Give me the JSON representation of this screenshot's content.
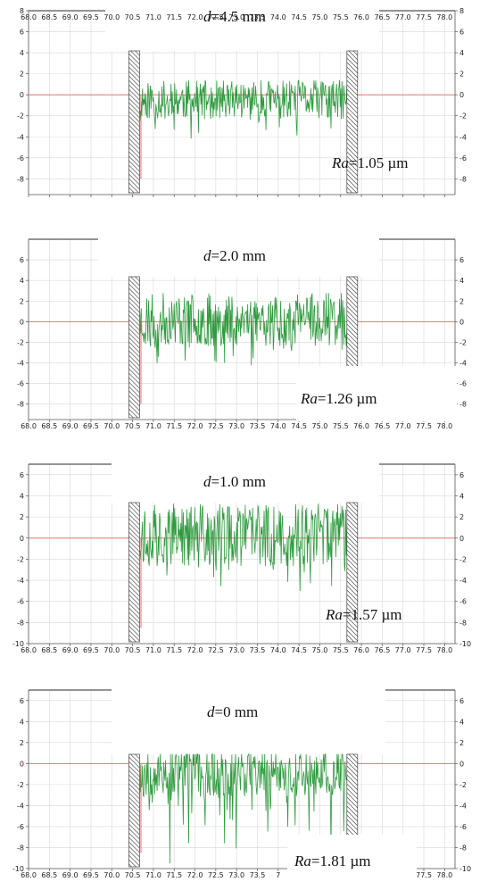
{
  "colors": {
    "profile": "#2e9b3e",
    "zero_line": "#e06060",
    "grid": "#d8d8d8",
    "axis": "#555555",
    "hatch": "#444444"
  },
  "chart_data": [
    {
      "type": "line",
      "title_italic": "d",
      "title_rest": "=4.5 mm",
      "ra_italic": "Ra",
      "ra_rest": "=1.05 µm",
      "xlim": [
        68.0,
        78.25
      ],
      "ylim": [
        -9.5,
        8
      ],
      "yticks": [
        8,
        6,
        4,
        2,
        0,
        -2,
        -4,
        -6,
        -8
      ],
      "xticks": [
        "68.0",
        "68.5",
        "69.0",
        "69.5",
        "70.0",
        "70.5",
        "71.0",
        "71.5",
        "72.0",
        "72.5",
        "73.0",
        "73.5",
        "74.0",
        "74.5",
        "75.0",
        "75.5",
        "76.0",
        "76.5",
        "77.0",
        "77.5",
        "78.0"
      ],
      "zero_line": 0,
      "profile": {
        "x_start": 70.68,
        "x_end": 75.65,
        "mean": -0.5,
        "amplitude": 1.9,
        "spikes": 0.8,
        "seed": 11
      },
      "edges": {
        "left": 70.62,
        "right": 75.7
      }
    },
    {
      "type": "line",
      "title_italic": "d",
      "title_rest": "=2.0 mm",
      "ra_italic": "Ra",
      "ra_rest": "=1.26 µm",
      "xlim": [
        68.0,
        78.25
      ],
      "ylim": [
        -9.5,
        8
      ],
      "yticks": [
        6,
        4,
        2,
        0,
        -2,
        -4,
        -6,
        -8
      ],
      "xticks": [
        "68.0",
        "68.5",
        "69.0",
        "69.5",
        "70.0",
        "70.5",
        "71.0",
        "71.5",
        "72.0",
        "72.5",
        "73.0",
        "73.5",
        "74.0",
        "74.5",
        "75.0",
        "75.5",
        "76.0",
        "76.5",
        "77.0",
        "77.5",
        "78.0"
      ],
      "zero_line": 0,
      "profile": {
        "x_start": 70.68,
        "x_end": 75.65,
        "mean": 0.2,
        "amplitude": 2.6,
        "spikes": 1.0,
        "seed": 23
      },
      "edges": {
        "left": 70.62,
        "right": 75.7
      }
    },
    {
      "type": "line",
      "title_italic": "d",
      "title_rest": "=1.0 mm",
      "ra_italic": "Ra",
      "ra_rest": "=1.57 µm",
      "xlim": [
        68.0,
        78.25
      ],
      "ylim": [
        -10,
        7
      ],
      "yticks": [
        6,
        4,
        2,
        0,
        -2,
        -4,
        -6,
        -8,
        -10
      ],
      "xticks": [
        "68.0",
        "68.5",
        "69.0",
        "69.5",
        "70.0",
        "70.5",
        "71.0",
        "71.5",
        "72.0",
        "72.5",
        "73.0",
        "73.5",
        "74.0",
        "74.5",
        "75.0",
        "75.5",
        "76.0",
        "76.5",
        "77.0",
        "77.5",
        "78.0"
      ],
      "zero_line": 0,
      "profile": {
        "x_start": 70.68,
        "x_end": 75.65,
        "mean": 0.3,
        "amplitude": 3.0,
        "spikes": 1.6,
        "seed": 37
      },
      "edges": {
        "left": 70.62,
        "right": 75.7
      }
    },
    {
      "type": "line",
      "title_italic": "d",
      "title_rest": "=0 mm",
      "ra_italic": "Ra",
      "ra_rest": "=1.81 µm",
      "xlim": [
        68.0,
        78.25
      ],
      "ylim": [
        -10,
        7
      ],
      "yticks": [
        6,
        4,
        2,
        0,
        -2,
        -4,
        -6,
        -8,
        -10
      ],
      "xticks": [
        "68.0",
        "68.5",
        "69.0",
        "69.5",
        "70.0",
        "70.5",
        "71.0",
        "71.5",
        "72.0",
        "72.5",
        "73.0",
        "73.5",
        "7",
        "",
        "",
        "",
        "",
        "",
        "",
        "77.5",
        "78.0"
      ],
      "zero_line": 0,
      "profile": {
        "x_start": 70.68,
        "x_end": 75.65,
        "mean": -0.8,
        "amplitude": 2.4,
        "spikes": 2.8,
        "seed": 53,
        "clip_top": 0.9
      },
      "edges": {
        "left": 70.62,
        "right": 75.7
      }
    }
  ]
}
